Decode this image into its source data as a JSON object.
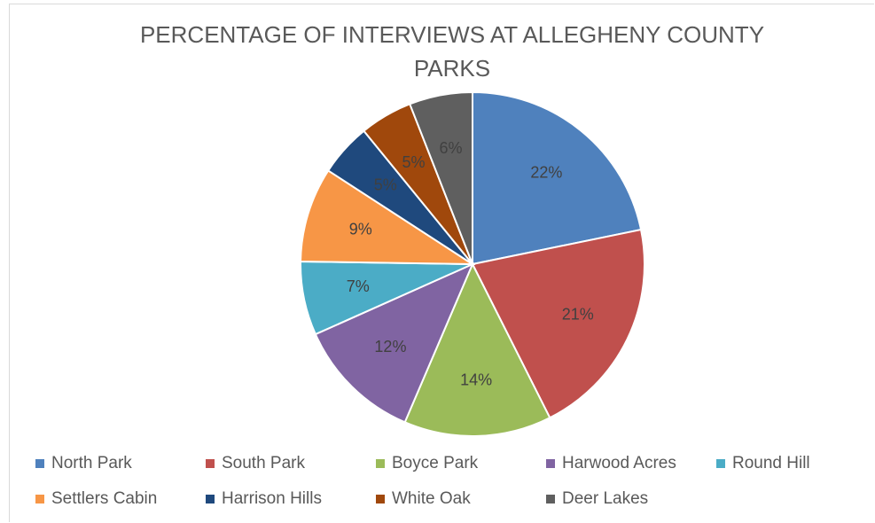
{
  "chart_data": {
    "type": "pie",
    "title": "PERCENTAGE OF INTERVIEWS AT ALLEGHENY COUNTY PARKS",
    "categories": [
      "North Park",
      "South Park",
      "Boyce Park",
      "Harwood Acres",
      "Round Hill",
      "Settlers Cabin",
      "Harrison Hills",
      "White Oak",
      "Deer Lakes"
    ],
    "values": [
      22,
      21,
      14,
      12,
      7,
      9,
      5,
      5,
      6
    ],
    "value_labels": [
      "22%",
      "21%",
      "14%",
      "12%",
      "7%",
      "9%",
      "5%",
      "5%",
      "6%"
    ],
    "colors": [
      "#4f81bd",
      "#c0504d",
      "#9bbb59",
      "#8064a2",
      "#4bacc6",
      "#f79646",
      "#1f497d",
      "#a0480c",
      "#5f5f5f"
    ],
    "legend": "bottom"
  }
}
